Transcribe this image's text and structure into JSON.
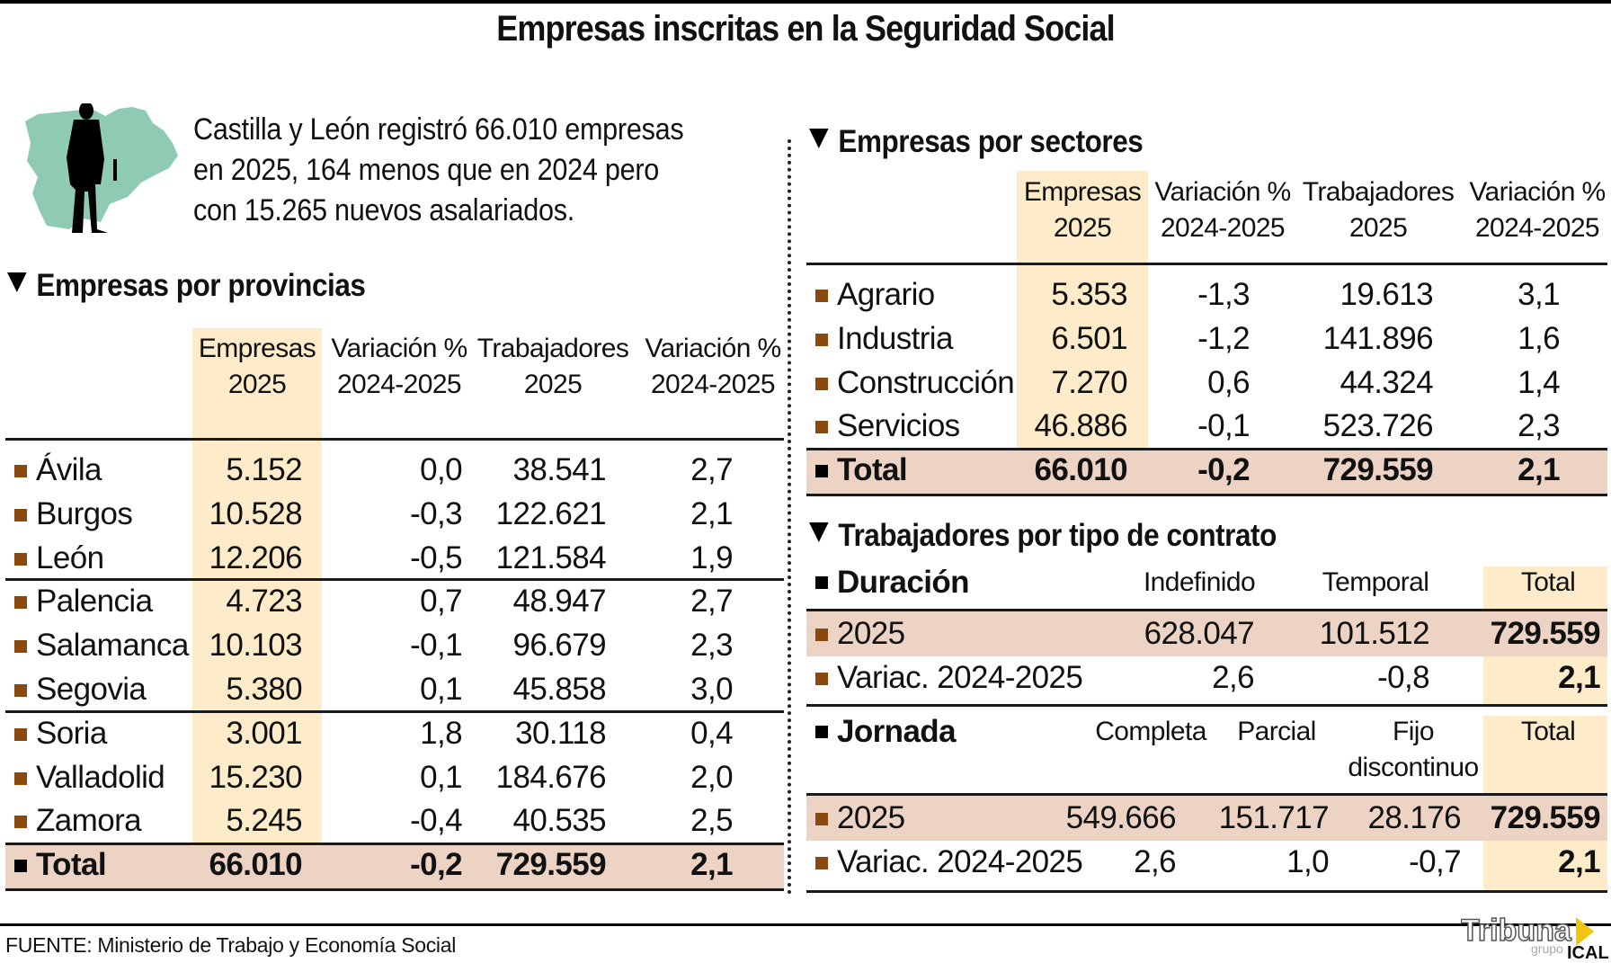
{
  "title": "Empresas inscritas en la Seguridad Social",
  "intro": {
    "lines": [
      "Castilla y León registró 66.010 empresas",
      "en 2025, 164 menos que en 2024 pero",
      "con 15.265 nuevos asalariados."
    ],
    "illustration": "businessman-over-castilla-leon-map-icon"
  },
  "colors": {
    "highlight": "#fdebca",
    "total_row": "#ecd3c4",
    "bullet": "#8a4a0f",
    "map": "#8fcbb3"
  },
  "source": "FUENTE: Ministerio de Trabajo y Economía Social",
  "logo": {
    "main": "Tribuna",
    "sub": "grupo",
    "brand": "ICAL"
  },
  "chart_data": [
    {
      "type": "table",
      "title": "Empresas por provincias",
      "columns": [
        "Empresas 2025",
        "Variación % 2024-2025",
        "Trabajadores 2025",
        "Variación % 2024-2025"
      ],
      "header": [
        [
          "Empresas",
          "2025"
        ],
        [
          "Variación %",
          "2024-2025"
        ],
        [
          "Trabajadores",
          "2025"
        ],
        [
          "Variación %",
          "2024-2025"
        ]
      ],
      "rows": [
        {
          "name": "Ávila",
          "values": [
            "5.152",
            "0,0",
            "38.541",
            "2,7"
          ]
        },
        {
          "name": "Burgos",
          "values": [
            "10.528",
            "-0,3",
            "122.621",
            "2,1"
          ]
        },
        {
          "name": "León",
          "values": [
            "12.206",
            "-0,5",
            "121.584",
            "1,9"
          ]
        },
        {
          "name": "Palencia",
          "values": [
            "4.723",
            "0,7",
            "48.947",
            "2,7"
          ]
        },
        {
          "name": "Salamanca",
          "values": [
            "10.103",
            "-0,1",
            "96.679",
            "2,3"
          ]
        },
        {
          "name": "Segovia",
          "values": [
            "5.380",
            "0,1",
            "45.858",
            "3,0"
          ]
        },
        {
          "name": "Soria",
          "values": [
            "3.001",
            "1,8",
            "30.118",
            "0,4"
          ]
        },
        {
          "name": "Valladolid",
          "values": [
            "15.230",
            "0,1",
            "184.676",
            "2,0"
          ]
        },
        {
          "name": "Zamora",
          "values": [
            "5.245",
            "-0,4",
            "40.535",
            "2,5"
          ]
        }
      ],
      "total": {
        "name": "Total",
        "values": [
          "66.010",
          "-0,2",
          "729.559",
          "2,1"
        ]
      }
    },
    {
      "type": "table",
      "title": "Empresas por sectores",
      "columns": [
        "Empresas 2025",
        "Variación % 2024-2025",
        "Trabajadores 2025",
        "Variación % 2024-2025"
      ],
      "header": [
        [
          "Empresas",
          "2025"
        ],
        [
          "Variación %",
          "2024-2025"
        ],
        [
          "Trabajadores",
          "2025"
        ],
        [
          "Variación %",
          "2024-2025"
        ]
      ],
      "rows": [
        {
          "name": "Agrario",
          "values": [
            "5.353",
            "-1,3",
            "19.613",
            "3,1"
          ]
        },
        {
          "name": "Industria",
          "values": [
            "6.501",
            "-1,2",
            "141.896",
            "1,6"
          ]
        },
        {
          "name": "Construcción",
          "values": [
            "7.270",
            "0,6",
            "44.324",
            "1,4"
          ]
        },
        {
          "name": "Servicios",
          "values": [
            "46.886",
            "-0,1",
            "523.726",
            "2,3"
          ]
        }
      ],
      "total": {
        "name": "Total",
        "values": [
          "66.010",
          "-0,2",
          "729.559",
          "2,1"
        ]
      }
    },
    {
      "type": "table",
      "title": "Trabajadores por tipo de contrato",
      "duracion": {
        "label": "Duración",
        "columns": [
          "Indefinido",
          "Temporal",
          "Total"
        ],
        "rows": [
          {
            "name": "2025",
            "values": [
              "628.047",
              "101.512",
              "729.559"
            ]
          },
          {
            "name": "Variac. 2024-2025",
            "values": [
              "2,6",
              "-0,8",
              "2,1"
            ]
          }
        ]
      },
      "jornada": {
        "label": "Jornada",
        "columns": [
          "Completa",
          "Parcial",
          "Fijo discontinuo",
          "Total"
        ],
        "column_lines": [
          [
            "Completa"
          ],
          [
            "Parcial"
          ],
          [
            "Fijo",
            "discontinuo"
          ],
          [
            "Total"
          ]
        ],
        "rows": [
          {
            "name": "2025",
            "values": [
              "549.666",
              "151.717",
              "28.176",
              "729.559"
            ]
          },
          {
            "name": "Variac. 2024-2025",
            "values": [
              "2,6",
              "1,0",
              "-0,7",
              "2,1"
            ]
          }
        ]
      }
    }
  ]
}
